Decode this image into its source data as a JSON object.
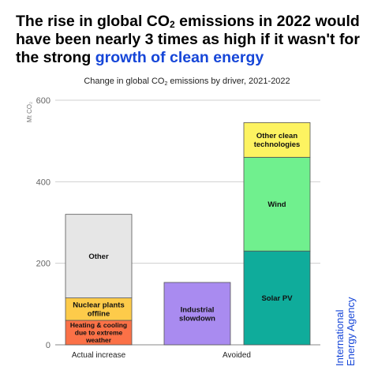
{
  "headline": {
    "part1": "The rise in global CO",
    "sub": "2",
    "part2": " emissions in 2022 would have been nearly 3 times as high if it wasn't for the strong ",
    "accent": "growth of clean energy"
  },
  "brand": {
    "name": "International Energy Agency",
    "color": "#1646d8"
  },
  "chart_data": {
    "type": "bar",
    "stacked": true,
    "title_part1": "Change in global CO",
    "title_sub": "2",
    "title_part2": " emissions by driver, 2021-2022",
    "ylabel": "Mt CO₂",
    "ylim": [
      0,
      600
    ],
    "yticks": [
      0,
      200,
      400,
      600
    ],
    "grid": true,
    "categories": [
      "Actual increase",
      "Avoided"
    ],
    "stacks": [
      {
        "category": "Actual increase",
        "segments": [
          {
            "label": "Heating & cooling due to extreme weather",
            "lines": [
              "Heating & cooling",
              "due to extreme",
              "weather"
            ],
            "value": 60,
            "color": "#fb7147"
          },
          {
            "label": "Nuclear plants offline",
            "lines": [
              "Nuclear plants",
              "offline"
            ],
            "value": 55,
            "color": "#fdcb4a"
          },
          {
            "label": "Other",
            "lines": [
              "Other"
            ],
            "value": 205,
            "color": "#e6e6e6"
          }
        ]
      },
      {
        "category": "Avoided",
        "sub_bars": [
          {
            "segments": [
              {
                "label": "Industrial slowdown",
                "lines": [
                  "Industrial",
                  "slowdown"
                ],
                "value": 153,
                "color": "#a98bf0"
              }
            ]
          },
          {
            "segments": [
              {
                "label": "Solar PV",
                "lines": [
                  "Solar PV"
                ],
                "value": 230,
                "color": "#0fac9b"
              },
              {
                "label": "Wind",
                "lines": [
                  "Wind"
                ],
                "value": 230,
                "color": "#70f08e"
              },
              {
                "label": "Other clean technologies",
                "lines": [
                  "Other clean",
                  "technologies"
                ],
                "value": 85,
                "color": "#fdf361"
              }
            ]
          }
        ]
      }
    ]
  }
}
